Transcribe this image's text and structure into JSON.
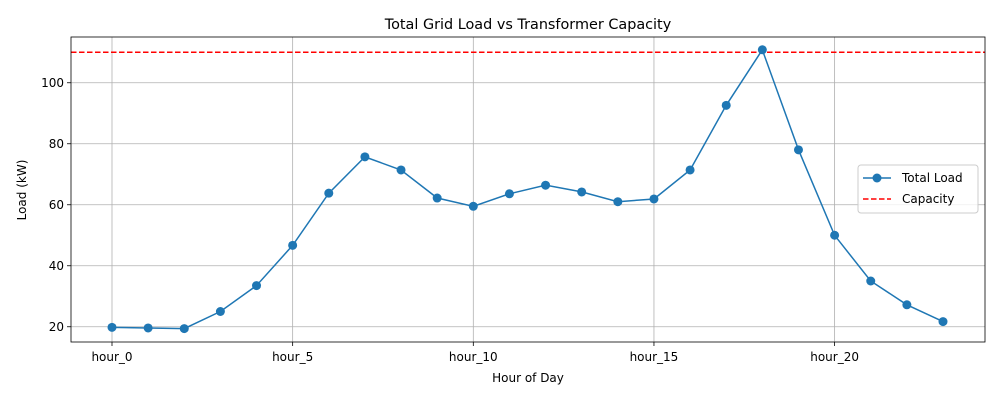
{
  "chart_data": {
    "type": "line",
    "title": "Total Grid Load vs Transformer Capacity",
    "xlabel": "Hour of Day",
    "ylabel": "Load (kW)",
    "categories": [
      "hour_0",
      "hour_1",
      "hour_2",
      "hour_3",
      "hour_4",
      "hour_5",
      "hour_6",
      "hour_7",
      "hour_8",
      "hour_9",
      "hour_10",
      "hour_11",
      "hour_12",
      "hour_13",
      "hour_14",
      "hour_15",
      "hour_16",
      "hour_17",
      "hour_18",
      "hour_19",
      "hour_20",
      "hour_21",
      "hour_22",
      "hour_23"
    ],
    "x_tick_labels": [
      "hour_0",
      "hour_5",
      "hour_10",
      "hour_15",
      "hour_20"
    ],
    "y_ticks": [
      20,
      40,
      60,
      80,
      100
    ],
    "ylim": [
      15,
      115
    ],
    "grid": true,
    "legend_position": "center-right",
    "series": [
      {
        "name": "Total Load",
        "color": "#1f77b4",
        "marker": "circle",
        "values": [
          19.8,
          19.6,
          19.4,
          25.0,
          33.5,
          46.7,
          63.8,
          75.7,
          71.4,
          62.2,
          59.5,
          63.6,
          66.4,
          64.2,
          61.0,
          61.9,
          71.4,
          92.6,
          110.8,
          78.0,
          50.0,
          35.0,
          27.2,
          21.7
        ]
      }
    ],
    "reference_lines": [
      {
        "name": "Capacity",
        "value": 110,
        "color": "#ff0000",
        "style": "dashed"
      }
    ]
  }
}
